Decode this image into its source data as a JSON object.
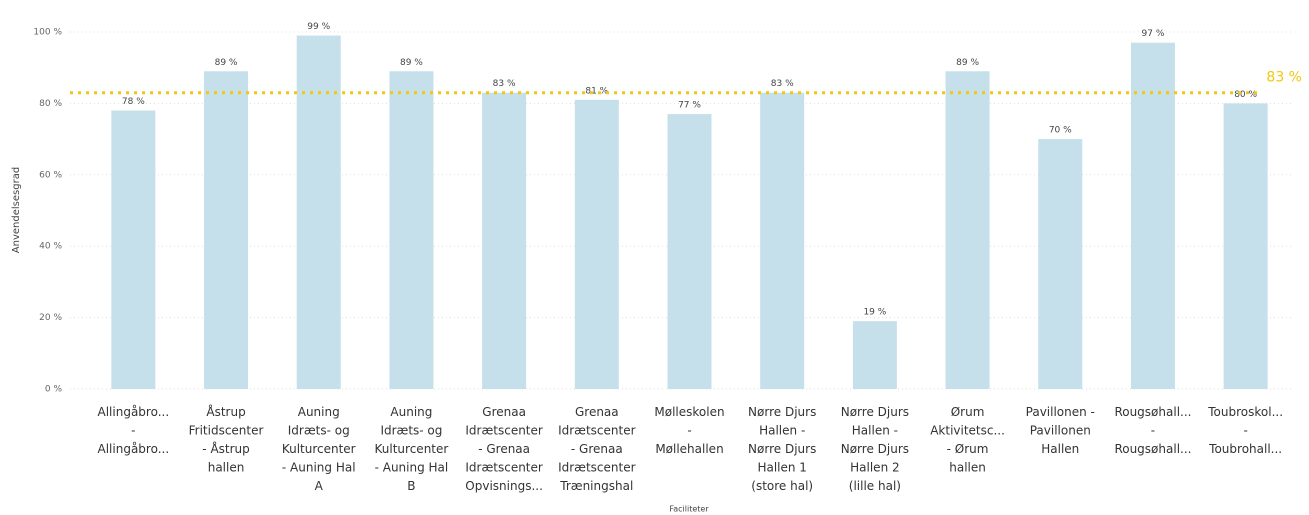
{
  "chart_data": {
    "type": "bar",
    "xlabel": "Faciliteter",
    "ylabel": "Anvendelsesgrad",
    "categories": [
      "Allingåbro...\n-\nAllingåbro...",
      "Åstrup\nFritidscenter\n- Åstrup\nhallen",
      "Auning\nIdræts- og\nKulturcenter\n- Auning Hal\nA",
      "Auning\nIdræts- og\nKulturcenter\n- Auning Hal\nB",
      "Grenaa\nIdrætscenter\n- Grenaa\nIdrætscenter\nOpvisnings...",
      "Grenaa\nIdrætscenter\n- Grenaa\nIdrætscenter\nTræningshal",
      "Mølleskolen\n-\nMøllehallen",
      "Nørre Djurs\nHallen -\nNørre Djurs\nHallen 1\n(store hal)",
      "Nørre Djurs\nHallen -\nNørre Djurs\nHallen 2\n(lille hal)",
      "Ørum\nAktivitetsc...\n- Ørum\nhallen",
      "Pavillonen -\nPavillonen\nHallen",
      "Rougsøhall...\n-\nRougsøhall...",
      "Toubroskol...\n-\nToubrohall..."
    ],
    "values": [
      78,
      89,
      99,
      89,
      83,
      81,
      77,
      83,
      19,
      89,
      70,
      97,
      80
    ],
    "value_labels": [
      "78 %",
      "89 %",
      "99 %",
      "89 %",
      "83 %",
      "81 %",
      "77 %",
      "83 %",
      "19 %",
      "89 %",
      "70 %",
      "97 %",
      "80 %"
    ],
    "color": "#c5dfeb",
    "ylim": [
      0,
      100
    ],
    "yticks": [
      {
        "value": 0,
        "label": "0 %"
      },
      {
        "value": 20,
        "label": "20 %"
      },
      {
        "value": 40,
        "label": "40 %"
      },
      {
        "value": 60,
        "label": "60 %"
      },
      {
        "value": 80,
        "label": "80 %"
      },
      {
        "value": 100,
        "label": "100 %"
      }
    ],
    "grid": true,
    "reference_line": {
      "value": 83,
      "label": "83 %",
      "color": "#f2c80f"
    }
  }
}
